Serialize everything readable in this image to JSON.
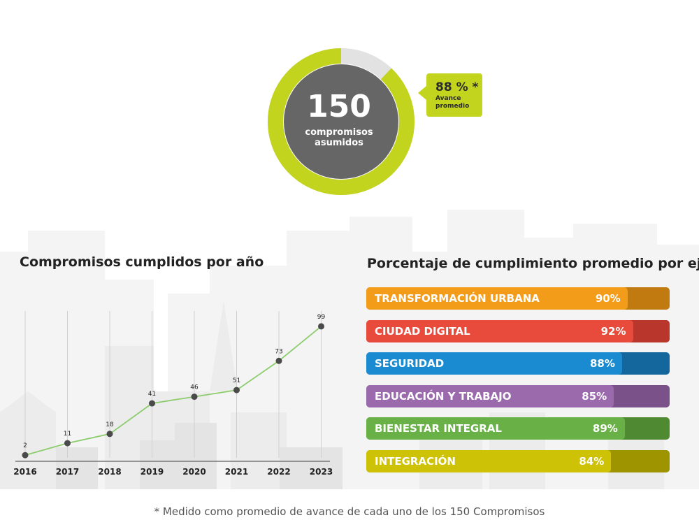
{
  "donut": {
    "total": "150",
    "label_line1": "compromisos",
    "label_line2": "asumidos",
    "progress_fraction": 0.88,
    "color_progress": "#c3d41e",
    "color_track": "#e2e2e2",
    "color_center": "#666666"
  },
  "callout": {
    "value": "88 % *",
    "label_line1": "Avance",
    "label_line2": "promedio"
  },
  "line_chart": {
    "title": "Compromisos cumplidos por año"
  },
  "bars_chart": {
    "title": "Porcentaje de cumplimiento promedio por eje"
  },
  "footnote": "* Medido como promedio de avance de cada uno de los 150 Compromisos",
  "chart_data": [
    {
      "type": "line",
      "title": "Compromisos cumplidos por año",
      "x": [
        "2016",
        "2017",
        "2018",
        "2019",
        "2020",
        "2021",
        "2022",
        "2023"
      ],
      "values": [
        2,
        11,
        18,
        41,
        46,
        51,
        73,
        99
      ],
      "ylim": [
        0,
        100
      ],
      "line_color": "#8ccc6e",
      "point_color": "#4a4a4a",
      "grid": "vertical"
    },
    {
      "type": "bar",
      "orientation": "horizontal",
      "title": "Porcentaje de cumplimiento promedio por eje",
      "xlim": [
        0,
        100
      ],
      "bars": [
        {
          "label": "TRANSFORMACIÓN URBANA",
          "value": 90,
          "display": "90%",
          "color": "#f39c1a",
          "track": "#c17a0f"
        },
        {
          "label": "CIUDAD DIGITAL",
          "value": 92,
          "display": "92%",
          "color": "#e84a3c",
          "track": "#b8362b"
        },
        {
          "label": "SEGURIDAD",
          "value": 88,
          "display": "88%",
          "color": "#1a8bd0",
          "track": "#13679c"
        },
        {
          "label": "EDUCACIÓN Y TRABAJO",
          "value": 85,
          "display": "85%",
          "color": "#9b6aad",
          "track": "#7a5189"
        },
        {
          "label": "BIENESTAR INTEGRAL",
          "value": 89,
          "display": "89%",
          "color": "#69b146",
          "track": "#4f8a33"
        },
        {
          "label": "INTEGRACIÓN",
          "value": 84,
          "display": "84%",
          "color": "#cdc205",
          "track": "#9e9400"
        }
      ]
    }
  ]
}
